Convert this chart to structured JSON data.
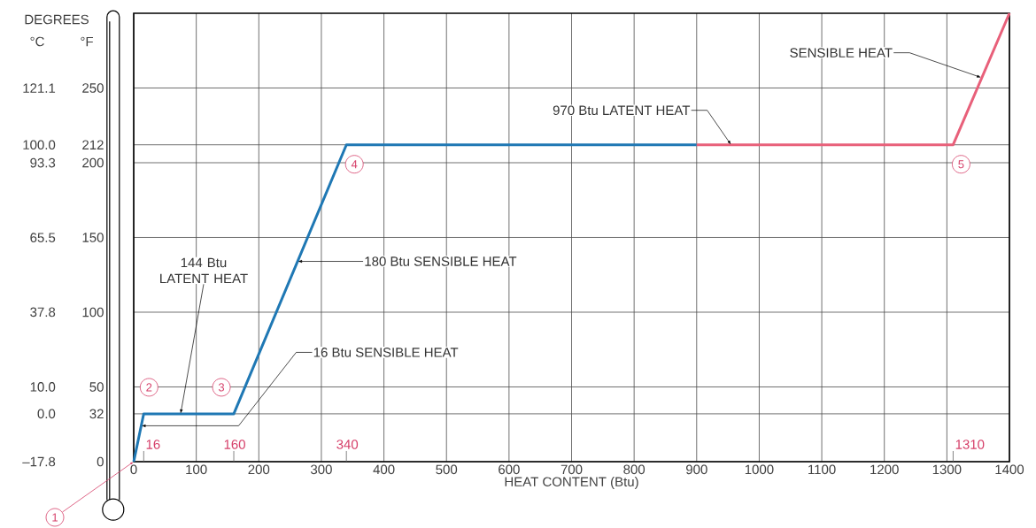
{
  "chart_data": {
    "type": "line",
    "xlabel": "HEAT CONTENT (Btu)",
    "ylabel": "°F",
    "y2label": "°C",
    "xlim": [
      0,
      1400
    ],
    "xticks": [
      0,
      100,
      200,
      300,
      400,
      500,
      600,
      700,
      800,
      900,
      1000,
      1100,
      1200,
      1300,
      1400
    ],
    "ylim": [
      0,
      300
    ],
    "yticks": [
      0,
      32,
      50,
      100,
      150,
      200,
      212,
      250
    ],
    "y2lim": [
      -17.8,
      148.9
    ],
    "y2ticks": [
      {
        "value": -17.8,
        "label": "–17.8"
      },
      {
        "value": 0,
        "label": "0.0"
      },
      {
        "value": 10,
        "label": "10.0"
      },
      {
        "value": 37.8,
        "label": "37.8"
      },
      {
        "value": 65.5,
        "label": "65.5"
      },
      {
        "value": 93.3,
        "label": "93.3"
      },
      {
        "value": 100,
        "label": "100.0"
      },
      {
        "value": 121.1,
        "label": "121.1"
      }
    ],
    "grid": true,
    "series": [
      {
        "color": "#1f78b4",
        "x": [
          0,
          16,
          160,
          340,
          900
        ],
        "values": [
          0,
          32,
          32,
          212,
          212
        ]
      },
      {
        "color": "#e8607a",
        "x": [
          900,
          1310,
          1400
        ],
        "values": [
          212,
          212,
          300
        ]
      }
    ],
    "annotations": [
      "DEGREES",
      {
        "text": "144 Btu LATENT HEAT",
        "x": 75,
        "y": 32
      },
      {
        "text": "180 Btu SENSIBLE HEAT",
        "x": 262,
        "y": 134
      },
      {
        "text": "16 Btu SENSIBLE HEAT",
        "x": 12,
        "y": 24
      },
      {
        "text": "970 Btu LATENT HEAT",
        "x": 955,
        "y": 212
      },
      {
        "text": "SENSIBLE HEAT",
        "x": 1355,
        "y": 257
      },
      {
        "text": "1",
        "x": 0,
        "y": 0
      },
      {
        "text": "2",
        "x": 16,
        "y": 32
      },
      {
        "text": "3",
        "x": 160,
        "y": 32
      },
      {
        "text": "4",
        "x": 340,
        "y": 212
      },
      {
        "text": "5",
        "x": 1310,
        "y": 212
      },
      "16",
      "160",
      "340",
      "1310"
    ]
  }
}
